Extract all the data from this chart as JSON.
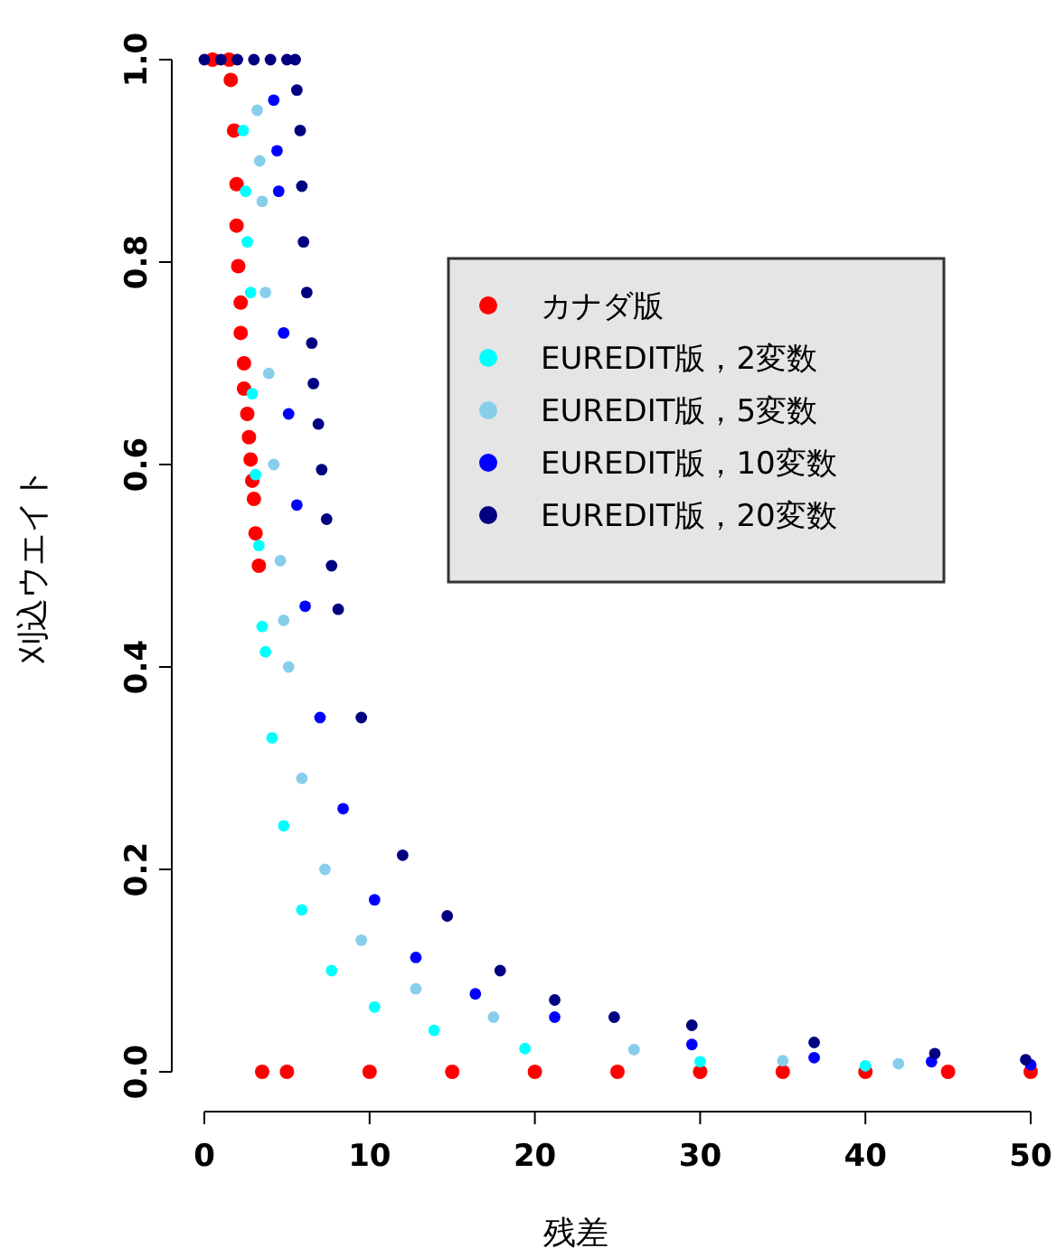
{
  "chart_data": {
    "type": "scatter",
    "xlabel": "残差",
    "ylabel": "刈込ウエイト",
    "marker": "circle",
    "legend": "top right",
    "xlim": [
      0,
      50
    ],
    "ylim": [
      0,
      1
    ],
    "xticks": [
      0,
      10,
      20,
      30,
      40,
      50
    ],
    "yticks": [
      {
        "value": 0,
        "label": "0.0"
      },
      {
        "value": 0.2,
        "label": "0.2"
      },
      {
        "value": 0.4,
        "label": "0.4"
      },
      {
        "value": 0.6,
        "label": "0.6"
      },
      {
        "value": 0.8,
        "label": "0.8"
      },
      {
        "value": 1,
        "label": "1.0"
      }
    ],
    "series": [
      {
        "name": "カナダ版",
        "color": "#ff0000",
        "x": [
          0.5,
          1.5,
          1.6,
          1.8,
          1.95,
          1.95,
          2.05,
          2.2,
          2.2,
          2.4,
          2.4,
          2.6,
          2.7,
          2.8,
          2.9,
          3.0,
          3.1,
          3.3,
          3.5,
          5,
          10,
          15,
          20,
          25,
          30,
          35,
          40,
          45,
          50
        ],
        "values": [
          1,
          1,
          0.98,
          0.93,
          0.877,
          0.836,
          0.796,
          0.76,
          0.73,
          0.7,
          0.675,
          0.65,
          0.627,
          0.605,
          0.584,
          0.566,
          0.532,
          0.5,
          0,
          0,
          0,
          0,
          0,
          0,
          0,
          0,
          0,
          0,
          0
        ]
      },
      {
        "name": "EUREDIT版，2変数",
        "color": "#00ffff",
        "x": [
          2.35,
          2.5,
          2.6,
          2.8,
          2.9,
          3.1,
          3.3,
          3.5,
          3.7,
          4.1,
          4.8,
          5.9,
          7.7,
          10.3,
          13.9,
          19.4,
          30,
          40
        ],
        "values": [
          0.93,
          0.87,
          0.82,
          0.77,
          0.67,
          0.59,
          0.52,
          0.44,
          0.415,
          0.33,
          0.243,
          0.16,
          0.1,
          0.064,
          0.041,
          0.023,
          0.01,
          0.006
        ]
      },
      {
        "name": "EUREDIT版，5変数",
        "color": "#87ceeb",
        "x": [
          3.2,
          3.35,
          3.5,
          3.7,
          3.9,
          4.2,
          4.6,
          4.8,
          5.1,
          5.9,
          7.3,
          9.5,
          12.8,
          17.5,
          26,
          35,
          42
        ],
        "values": [
          0.95,
          0.9,
          0.86,
          0.77,
          0.69,
          0.6,
          0.505,
          0.446,
          0.4,
          0.29,
          0.2,
          0.13,
          0.082,
          0.054,
          0.022,
          0.011,
          0.008
        ]
      },
      {
        "name": "EUREDIT版，10変数",
        "color": "#0000ff",
        "x": [
          4.2,
          4.4,
          4.5,
          4.8,
          5.1,
          5.6,
          6.1,
          7.0,
          8.4,
          10.3,
          12.8,
          16.4,
          21.2,
          29.5,
          36.9,
          44,
          50
        ],
        "values": [
          0.96,
          0.91,
          0.87,
          0.73,
          0.65,
          0.56,
          0.46,
          0.35,
          0.26,
          0.17,
          0.113,
          0.077,
          0.054,
          0.027,
          0.014,
          0.01,
          0.007
        ]
      },
      {
        "name": "EUREDIT版，20変数",
        "color": "#000080",
        "x": [
          0,
          1,
          2,
          3,
          4,
          5,
          5.5,
          5.6,
          5.8,
          5.9,
          6.0,
          6.2,
          6.5,
          6.6,
          6.9,
          7.1,
          7.4,
          7.7,
          8.1,
          9.5,
          12.0,
          14.7,
          17.9,
          21.2,
          24.8,
          29.5,
          36.9,
          44.2,
          49.7
        ],
        "values": [
          1,
          1,
          1,
          1,
          1,
          1,
          1,
          0.97,
          0.93,
          0.875,
          0.82,
          0.77,
          0.72,
          0.68,
          0.64,
          0.595,
          0.546,
          0.5,
          0.457,
          0.35,
          0.214,
          0.154,
          0.1,
          0.071,
          0.054,
          0.046,
          0.029,
          0.018,
          0.012
        ]
      }
    ]
  }
}
